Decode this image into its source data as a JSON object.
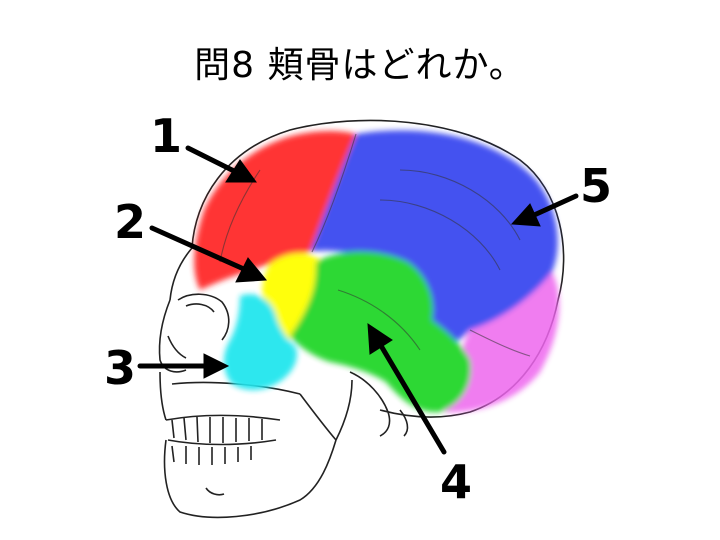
{
  "title": "問8 頬骨はどれか。",
  "labels": [
    "1",
    "2",
    "3",
    "4",
    "5"
  ],
  "region_colors": {
    "frontal": "#ff2a2a",
    "sphenoid": "#ffff00",
    "zygomatic": "#22e6ee",
    "temporal": "#22d62a",
    "parietal": "#3a48f0",
    "occipital": "#ee66ee"
  }
}
